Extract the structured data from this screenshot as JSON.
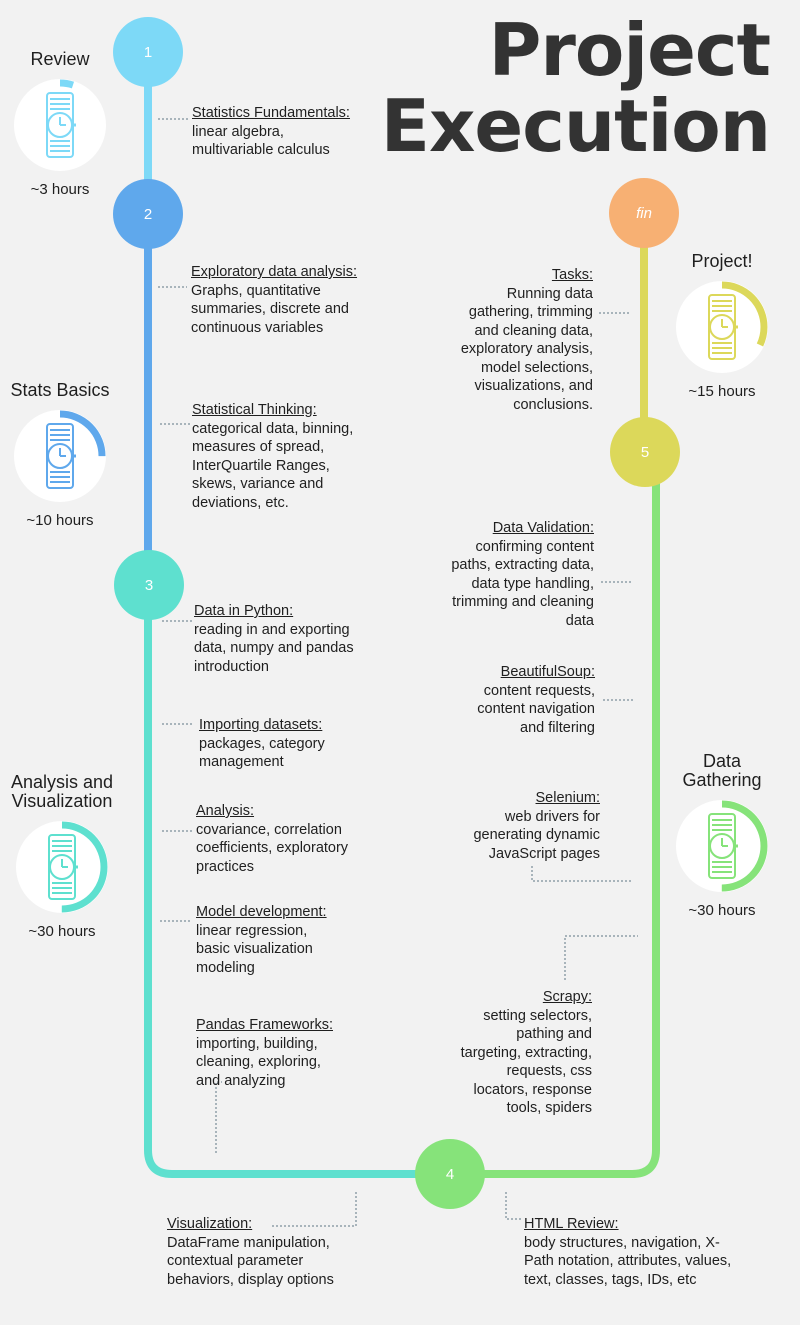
{
  "title": "Project\nExecution",
  "nodes": [
    {
      "label": "1",
      "color": "#7dd9f7"
    },
    {
      "label": "2",
      "color": "#5fa8ec"
    },
    {
      "label": "3",
      "color": "#5ee0cf"
    },
    {
      "label": "4",
      "color": "#86e37a"
    },
    {
      "label": "5",
      "color": "#dcd85a"
    },
    {
      "label": "fin",
      "color": "#f7b073"
    }
  ],
  "phases": [
    {
      "name": "Review",
      "hours": "~3 hours",
      "color": "#7dd9f7",
      "progress": 0.05
    },
    {
      "name": "Stats Basics",
      "hours": "~10 hours",
      "color": "#5fa8ec",
      "progress": 0.25
    },
    {
      "name": "Analysis and\nVisualization",
      "hours": "~30 hours",
      "color": "#5ee0cf",
      "progress": 0.5
    },
    {
      "name": "Data\nGathering",
      "hours": "~30 hours",
      "color": "#86e37a",
      "progress": 0.5
    },
    {
      "name": "Project!",
      "hours": "~15 hours",
      "color": "#dcd85a",
      "progress": 0.32
    }
  ],
  "blocks": [
    {
      "heading": "Statistics Fundamentals:",
      "body": "linear algebra,\nmultivariable calculus"
    },
    {
      "heading": "Exploratory data analysis:",
      "body": "Graphs, quantitative\nsummaries, discrete and\ncontinuous variables"
    },
    {
      "heading": "Statistical Thinking:",
      "body": "categorical data, binning,\nmeasures of spread,\nInterQuartile Ranges,\nskews, variance and\ndeviations,  etc."
    },
    {
      "heading": "Data in Python:",
      "body": "reading in and exporting\ndata, numpy and pandas\nintroduction"
    },
    {
      "heading": "Importing datasets:",
      "body": "packages, category\nmanagement"
    },
    {
      "heading": "Analysis:",
      "body": "covariance, correlation\ncoefficients, exploratory\npractices"
    },
    {
      "heading": "Model development:",
      "body": "linear regression,\nbasic visualization\nmodeling"
    },
    {
      "heading": "Pandas Frameworks:",
      "body": "importing, building,\ncleaning, exploring,\nand analyzing"
    },
    {
      "heading": "Visualization:",
      "body": "DataFrame manipulation,\ncontextual parameter\nbehaviors, display options"
    },
    {
      "heading": "HTML Review:",
      "body": "body structures, navigation,  X-\nPath notation, attributes, values,\ntext, classes, tags, IDs, etc"
    },
    {
      "heading": "Scrapy:",
      "body": "setting selectors,\npathing and\ntargeting, extracting,\nrequests, css\nlocators, response\ntools, spiders"
    },
    {
      "heading": "Selenium:",
      "body": "web drivers for\ngenerating dynamic\nJavaScript pages"
    },
    {
      "heading": "BeautifulSoup:",
      "body": "content requests,\ncontent navigation\nand filtering"
    },
    {
      "heading": "Data Validation:",
      "body": "confirming content\npaths, extracting data,\ndata type handling,\ntrimming and cleaning\ndata"
    },
    {
      "heading": "Tasks:",
      "body": "Running data\ngathering, trimming\nand cleaning data,\nexploratory analysis,\nmodel selections,\nvisualizations, and\nconclusions."
    }
  ]
}
